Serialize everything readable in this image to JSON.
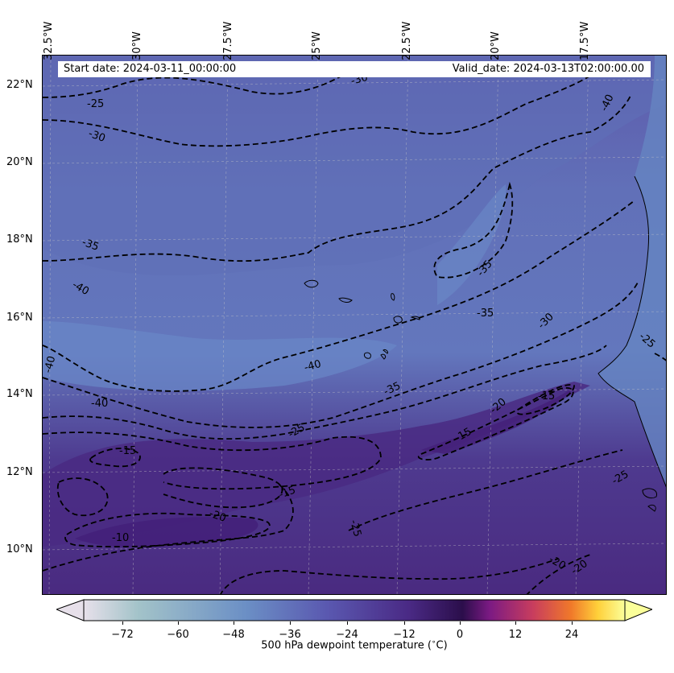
{
  "map": {
    "start_date": "Start date: 2024-03-11_00:00:00",
    "valid_date": "Valid_date: 2024-03-13T02:00:00.00",
    "longitude_labels": [
      "32.5°W",
      "30°W",
      "27.5°W",
      "25°W",
      "22.5°W",
      "20°W",
      "17.5°W"
    ],
    "latitude_labels": [
      "22°N",
      "20°N",
      "18°N",
      "16°N",
      "14°N",
      "12°N",
      "10°N"
    ],
    "contour_labels": [
      "-30",
      "-25",
      "-30",
      "-40",
      "-35",
      "-40",
      "-35",
      "-40",
      "-40",
      "-35",
      "-30",
      "-25",
      "-40",
      "-35",
      "-25",
      "-20",
      "-15",
      "-15",
      "-15",
      "-15",
      "-20",
      "-10",
      "-25",
      "-20",
      "-20",
      "-25"
    ],
    "colors": {
      "background_field": "#5a54a8",
      "cold_field": "#6377bd",
      "warm_field": "#4a1f7a",
      "contour": "#000000",
      "land": "#6a86c4"
    }
  },
  "colorbar": {
    "label": "500 hPa dewpoint temperature ($^\\circ$C)",
    "label_display": "500 hPa dewpoint temperature (",
    "label_deg": "∘",
    "label_end": "C)",
    "ticks": [
      "−72",
      "−60",
      "−48",
      "−36",
      "−24",
      "−12",
      "0",
      "12",
      "24"
    ],
    "tick_values": [
      -72,
      -60,
      -48,
      -36,
      -24,
      -12,
      0,
      12,
      24
    ],
    "range": [
      -84,
      36
    ],
    "extend": "both",
    "cmap_stops": [
      "#e7e0ea",
      "#a3c3c9",
      "#6b8fc5",
      "#5a58b0",
      "#4a2a85",
      "#2b0e4b",
      "#7b1a83",
      "#c83d5e",
      "#f0782a",
      "#ffd03a",
      "#fbff9a"
    ]
  }
}
